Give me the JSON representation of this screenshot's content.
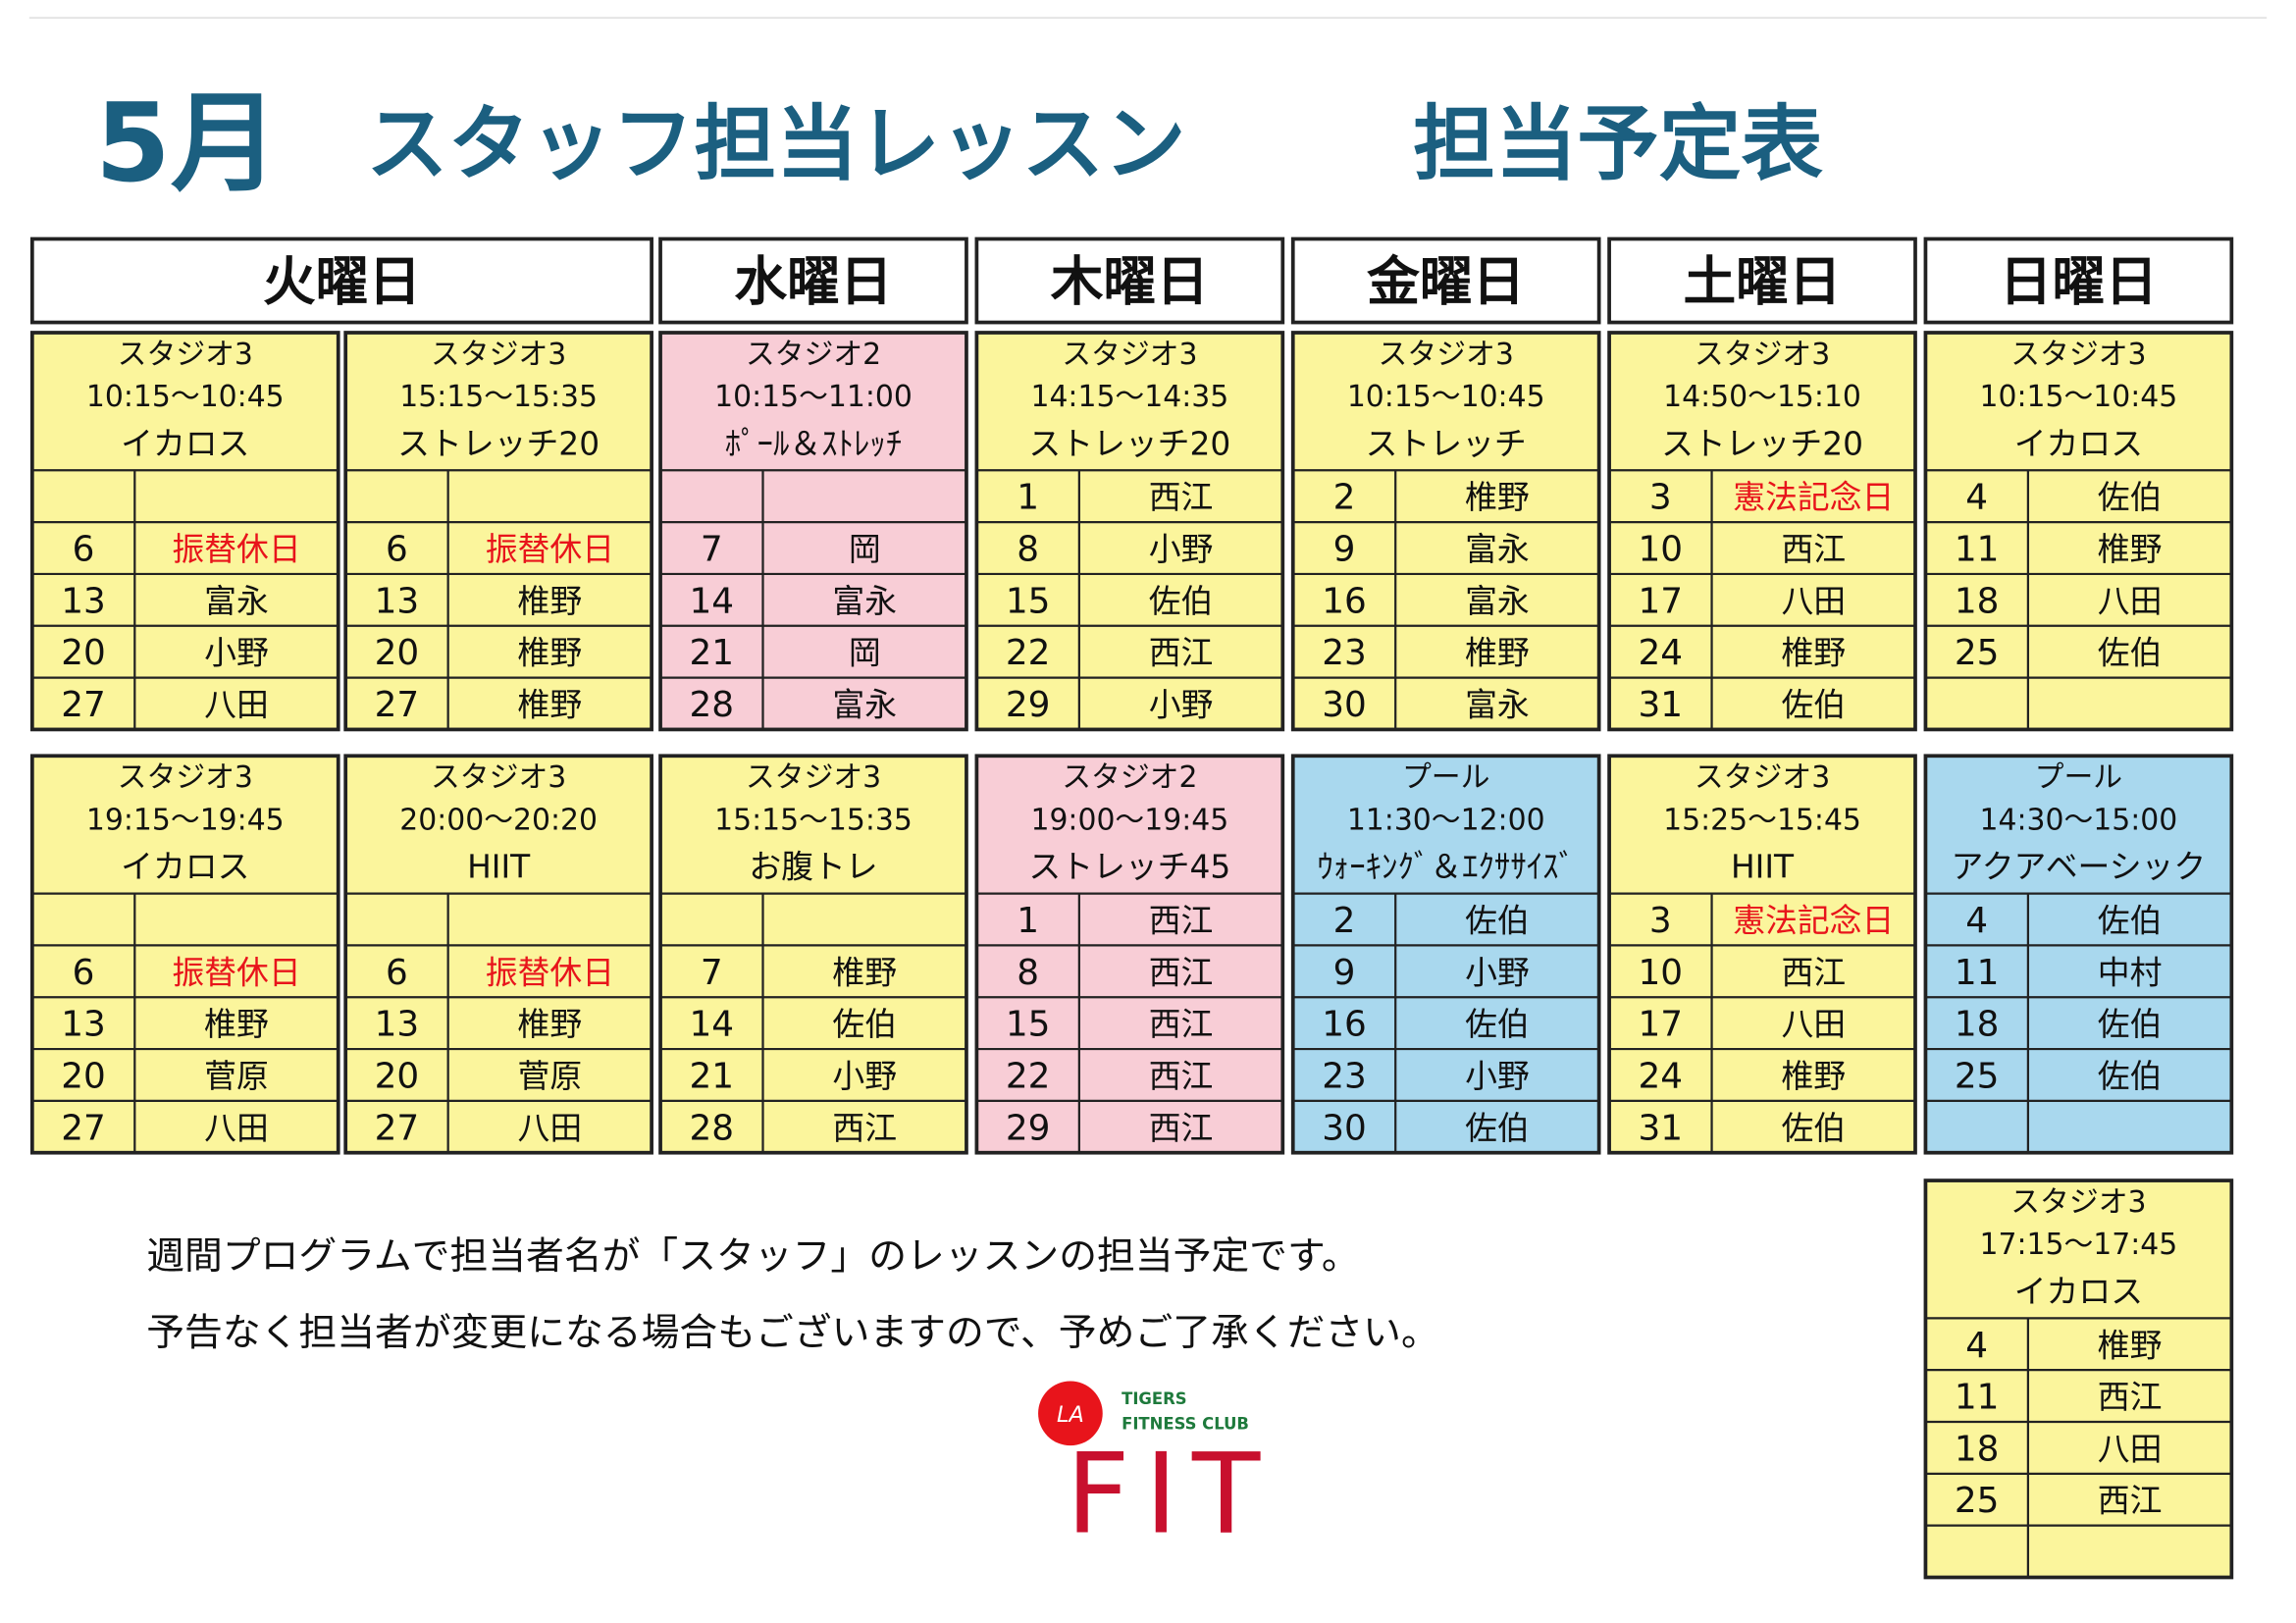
{
  "title": {
    "month": "5月",
    "main": "スタッフ担当レッスン",
    "sub": "担当予定表",
    "color": "#1b5f80"
  },
  "days": [
    "火曜日",
    "水曜日",
    "木曜日",
    "金曜日",
    "土曜日",
    "日曜日"
  ],
  "lessons": [
    {
      "studio": "スタジオ3",
      "time": "10:15〜10:45",
      "name": "イカロス",
      "color": "#fbf59c",
      "rows": [
        null,
        {
          "day": 6,
          "staff": "振替休日",
          "color": "#e8141b"
        },
        {
          "day": 13,
          "staff": "富永"
        },
        {
          "day": 20,
          "staff": "小野"
        },
        {
          "day": 27,
          "staff": "八田"
        }
      ]
    },
    {
      "studio": "スタジオ3",
      "time": "15:15〜15:35",
      "name": "ストレッチ20",
      "color": "#fbf59c",
      "rows": [
        null,
        {
          "day": 6,
          "staff": "振替休日",
          "color": "#e8141b"
        },
        {
          "day": 13,
          "staff": "椎野"
        },
        {
          "day": 20,
          "staff": "椎野"
        },
        {
          "day": 27,
          "staff": "椎野"
        }
      ]
    },
    {
      "studio": "スタジオ2",
      "time": "10:15〜11:00",
      "name": "ﾎﾟｰﾙ＆ｽﾄﾚｯﾁ",
      "color": "#f8cdd6",
      "rows": [
        null,
        {
          "day": 7,
          "staff": "岡"
        },
        {
          "day": 14,
          "staff": "富永"
        },
        {
          "day": 21,
          "staff": "岡"
        },
        {
          "day": 28,
          "staff": "富永"
        }
      ]
    },
    {
      "studio": "スタジオ3",
      "time": "14:15〜14:35",
      "name": "ストレッチ20",
      "color": "#fbf59c",
      "rows": [
        {
          "day": 1,
          "staff": "西江"
        },
        {
          "day": 8,
          "staff": "小野"
        },
        {
          "day": 15,
          "staff": "佐伯"
        },
        {
          "day": 22,
          "staff": "西江"
        },
        {
          "day": 29,
          "staff": "小野"
        }
      ]
    },
    {
      "studio": "スタジオ3",
      "time": "10:15〜10:45",
      "name": "ストレッチ",
      "color": "#fbf59c",
      "rows": [
        {
          "day": 2,
          "staff": "椎野"
        },
        {
          "day": 9,
          "staff": "富永"
        },
        {
          "day": 16,
          "staff": "富永"
        },
        {
          "day": 23,
          "staff": "椎野"
        },
        {
          "day": 30,
          "staff": "富永"
        }
      ]
    },
    {
      "studio": "スタジオ3",
      "time": "14:50〜15:10",
      "name": "ストレッチ20",
      "color": "#fbf59c",
      "rows": [
        {
          "day": 3,
          "staff": "憲法記念日",
          "color": "#e8141b"
        },
        {
          "day": 10,
          "staff": "西江"
        },
        {
          "day": 17,
          "staff": "八田"
        },
        {
          "day": 24,
          "staff": "椎野"
        },
        {
          "day": 31,
          "staff": "佐伯"
        }
      ]
    },
    {
      "studio": "スタジオ3",
      "time": "10:15〜10:45",
      "name": "イカロス",
      "color": "#fbf59c",
      "rows": [
        {
          "day": 4,
          "staff": "佐伯"
        },
        {
          "day": 11,
          "staff": "椎野"
        },
        {
          "day": 18,
          "staff": "八田"
        },
        {
          "day": 25,
          "staff": "佐伯"
        },
        null
      ]
    },
    {
      "studio": "スタジオ3",
      "time": "19:15〜19:45",
      "name": "イカロス",
      "color": "#fbf59c",
      "rows": [
        null,
        {
          "day": 6,
          "staff": "振替休日",
          "color": "#e8141b"
        },
        {
          "day": 13,
          "staff": "椎野"
        },
        {
          "day": 20,
          "staff": "菅原"
        },
        {
          "day": 27,
          "staff": "八田"
        }
      ]
    },
    {
      "studio": "スタジオ3",
      "time": "20:00〜20:20",
      "name": "HIIT",
      "color": "#fbf59c",
      "rows": [
        null,
        {
          "day": 6,
          "staff": "振替休日",
          "color": "#e8141b"
        },
        {
          "day": 13,
          "staff": "椎野"
        },
        {
          "day": 20,
          "staff": "菅原"
        },
        {
          "day": 27,
          "staff": "八田"
        }
      ]
    },
    {
      "studio": "スタジオ3",
      "time": "15:15〜15:35",
      "name": "お腹トレ",
      "color": "#fbf59c",
      "rows": [
        null,
        {
          "day": 7,
          "staff": "椎野"
        },
        {
          "day": 14,
          "staff": "佐伯"
        },
        {
          "day": 21,
          "staff": "小野"
        },
        {
          "day": 28,
          "staff": "西江"
        }
      ]
    },
    {
      "studio": "スタジオ2",
      "time": "19:00〜19:45",
      "name": "ストレッチ45",
      "color": "#f8cdd6",
      "rows": [
        {
          "day": 1,
          "staff": "西江"
        },
        {
          "day": 8,
          "staff": "西江"
        },
        {
          "day": 15,
          "staff": "西江"
        },
        {
          "day": 22,
          "staff": "西江"
        },
        {
          "day": 29,
          "staff": "西江"
        }
      ]
    },
    {
      "studio": "プール",
      "time": "11:30〜12:00",
      "name": "ｳｫｰｷﾝｸﾞ＆ｴｸｻｻｲｽﾞ",
      "color": "#a9d8ee",
      "rows": [
        {
          "day": 2,
          "staff": "佐伯"
        },
        {
          "day": 9,
          "staff": "小野"
        },
        {
          "day": 16,
          "staff": "佐伯"
        },
        {
          "day": 23,
          "staff": "小野"
        },
        {
          "day": 30,
          "staff": "佐伯"
        }
      ]
    },
    {
      "studio": "スタジオ3",
      "time": "15:25〜15:45",
      "name": "HIIT",
      "color": "#fbf59c",
      "rows": [
        {
          "day": 3,
          "staff": "憲法記念日",
          "color": "#e8141b"
        },
        {
          "day": 10,
          "staff": "西江"
        },
        {
          "day": 17,
          "staff": "八田"
        },
        {
          "day": 24,
          "staff": "椎野"
        },
        {
          "day": 31,
          "staff": "佐伯"
        }
      ]
    },
    {
      "studio": "プール",
      "time": "14:30〜15:00",
      "name": "アクアベーシック",
      "color": "#a9d8ee",
      "rows": [
        {
          "day": 4,
          "staff": "佐伯"
        },
        {
          "day": 11,
          "staff": "中村"
        },
        {
          "day": 18,
          "staff": "佐伯"
        },
        {
          "day": 25,
          "staff": "佐伯"
        },
        null
      ]
    },
    {
      "studio": "スタジオ3",
      "time": "17:15〜17:45",
      "name": "イカロス",
      "color": "#fbf59c",
      "rows": [
        {
          "day": 4,
          "staff": "椎野"
        },
        {
          "day": 11,
          "staff": "西江"
        },
        {
          "day": 18,
          "staff": "八田"
        },
        {
          "day": 25,
          "staff": "西江"
        },
        null
      ]
    }
  ],
  "notes": [
    "週間プログラムで担当者名が「スタッフ」のレッスンの担当予定です。",
    "予告なく担当者が変更になる場合もございますので、予めご了承ください。"
  ],
  "logo": {
    "badge": "LA",
    "line1": "TIGERS",
    "line2": "FITNESS CLUB",
    "mark": "FIT"
  }
}
